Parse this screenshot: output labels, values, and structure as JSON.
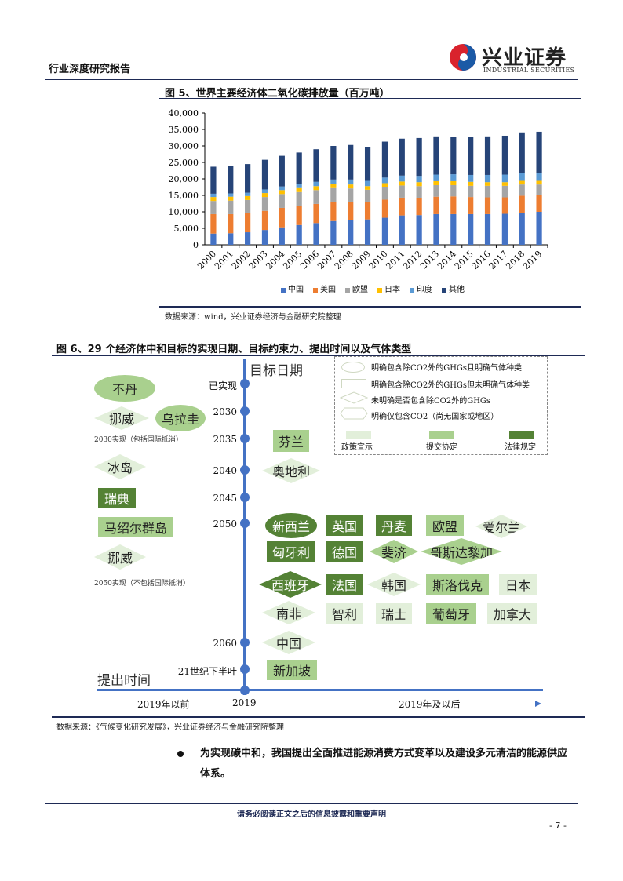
{
  "header": {
    "report_type": "行业深度研究报告",
    "logo_cn": "兴业证券",
    "logo_en": "INDUSTRIAL SECURITIES",
    "logo_colors": {
      "red": "#d9232d",
      "blue": "#1b5aa6"
    }
  },
  "figure5": {
    "title": "图 5、世界主要经济体二氧化碳排放量（百万吨）",
    "source": "数据来源：wind，兴业证券经济与金融研究院整理"
  },
  "chart_data": {
    "type": "bar",
    "stacked": true,
    "title": "世界主要经济体二氧化碳排放量（百万吨）",
    "xlabel": "",
    "ylabel": "",
    "ylim": [
      0,
      40000
    ],
    "yticks": [
      "0",
      "5,000",
      "10,000",
      "15,000",
      "20,000",
      "25,000",
      "30,000",
      "35,000",
      "40,000"
    ],
    "legend_position": "bottom",
    "grid": false,
    "categories": [
      "2000",
      "2001",
      "2002",
      "2003",
      "2004",
      "2005",
      "2006",
      "2007",
      "2008",
      "2009",
      "2010",
      "2011",
      "2012",
      "2013",
      "2014",
      "2015",
      "2016",
      "2017",
      "2018",
      "2019"
    ],
    "series": [
      {
        "name": "中国",
        "color": "#4472c4",
        "values": [
          3400,
          3500,
          3800,
          4500,
          5300,
          6000,
          6600,
          7200,
          7400,
          7700,
          8200,
          8900,
          9000,
          9300,
          9300,
          9300,
          9300,
          9400,
          9700,
          10000
        ]
      },
      {
        "name": "美国",
        "color": "#ed7d31",
        "values": [
          5900,
          5800,
          5800,
          5800,
          5900,
          5900,
          5800,
          5900,
          5700,
          5300,
          5500,
          5400,
          5200,
          5300,
          5400,
          5200,
          5100,
          5000,
          5200,
          5000
        ]
      },
      {
        "name": "欧盟",
        "color": "#a5a5a5",
        "values": [
          4000,
          4100,
          4000,
          4200,
          4200,
          4100,
          4200,
          4100,
          4000,
          3700,
          3800,
          3700,
          3600,
          3500,
          3400,
          3400,
          3500,
          3500,
          3400,
          3300
        ]
      },
      {
        "name": "日本",
        "color": "#ffc000",
        "values": [
          1200,
          1200,
          1200,
          1200,
          1200,
          1200,
          1200,
          1200,
          1200,
          1100,
          1200,
          1200,
          1200,
          1200,
          1200,
          1200,
          1100,
          1100,
          1100,
          1100
        ]
      },
      {
        "name": "印度",
        "color": "#5b9bd5",
        "values": [
          1000,
          1000,
          1000,
          1100,
          1100,
          1200,
          1300,
          1400,
          1500,
          1600,
          1700,
          1800,
          1900,
          2000,
          2100,
          2100,
          2200,
          2300,
          2400,
          2500
        ]
      },
      {
        "name": "其他",
        "color": "#264478",
        "values": [
          8200,
          8400,
          8700,
          9000,
          9300,
          9600,
          9900,
          10200,
          10500,
          10300,
          10900,
          11200,
          11500,
          11600,
          11400,
          11600,
          11700,
          11800,
          12300,
          12400
        ]
      }
    ]
  },
  "figure6": {
    "title": "图 6、29 个经济体中和目标的实现日期、目标约束力、提出时间以及气体类型",
    "axis_title_v": "目标日期",
    "axis_title_h": "提出时间",
    "timeline": [
      "已实现",
      "2030",
      "2035",
      "2040",
      "2045",
      "2050",
      "2060",
      "21世纪下半叶"
    ],
    "x_labels": [
      "2019年以前",
      "2019",
      "2019年及以后"
    ],
    "left_notes": [
      "2030实现（包括国际抵消）",
      "2050实现（不包括国际抵消）"
    ],
    "legend": {
      "shapes": [
        "明确包含除CO2外的GHGs且明确气体种类",
        "明确包含除CO2外的GHGs但未明确气体种类",
        "未明确是否包含除CO2外的GHGs",
        "明确仅包含CO2（尚无国家或地区）"
      ],
      "colors": [
        {
          "label": "政策宣示",
          "hex": "#e2efda"
        },
        {
          "label": "提交协定",
          "hex": "#a9d08e"
        },
        {
          "label": "法律规定",
          "hex": "#548235"
        }
      ]
    },
    "nodes": [
      {
        "label": "不丹"
      },
      {
        "label": "挪威"
      },
      {
        "label": "乌拉圭"
      },
      {
        "label": "冰岛"
      },
      {
        "label": "瑞典"
      },
      {
        "label": "马绍尔群岛"
      },
      {
        "label": "挪威"
      },
      {
        "label": "芬兰"
      },
      {
        "label": "奥地利"
      },
      {
        "label": "新西兰"
      },
      {
        "label": "英国"
      },
      {
        "label": "丹麦"
      },
      {
        "label": "欧盟"
      },
      {
        "label": "爱尔兰"
      },
      {
        "label": "匈牙利"
      },
      {
        "label": "德国"
      },
      {
        "label": "斐济"
      },
      {
        "label": "哥斯达黎加"
      },
      {
        "label": "西班牙"
      },
      {
        "label": "法国"
      },
      {
        "label": "韩国"
      },
      {
        "label": "斯洛伐克"
      },
      {
        "label": "日本"
      },
      {
        "label": "南非"
      },
      {
        "label": "智利"
      },
      {
        "label": "瑞士"
      },
      {
        "label": "葡萄牙"
      },
      {
        "label": "加拿大"
      },
      {
        "label": "中国"
      },
      {
        "label": "新加坡"
      }
    ],
    "source": "数据来源：《气候变化研究发展》，兴业证券经济与金融研究院整理"
  },
  "body": {
    "bullet": "为实现碳中和，我国提出全面推进能源消费方式变革以及建设多元清洁的能源供应体系。"
  },
  "footer": {
    "disclaimer": "请务必阅读正文之后的信息披露和重要声明",
    "page": "- 7 -"
  }
}
